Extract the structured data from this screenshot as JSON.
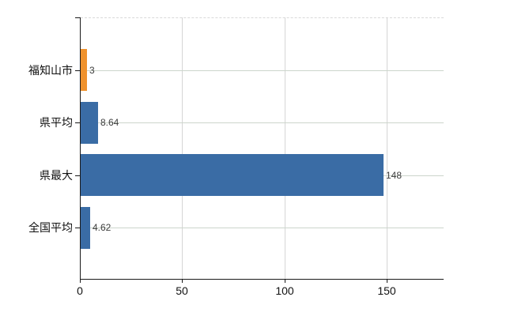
{
  "chart_data": {
    "type": "bar",
    "orientation": "horizontal",
    "title": "",
    "categories": [
      "福知山市",
      "県平均",
      "県最大",
      "全国平均"
    ],
    "values": [
      3,
      8.64,
      148,
      4.62
    ],
    "value_labels": [
      "3",
      "8.64",
      "148",
      "4.62"
    ],
    "bar_colors": [
      "#ef922d",
      "#3a6ca5",
      "#3a6ca5",
      "#3a6ca5"
    ],
    "x_tick_values": [
      0,
      50,
      100,
      150
    ],
    "x_tick_labels": [
      "0",
      "50",
      "100",
      "150"
    ],
    "xlim": [
      0,
      177.5
    ],
    "grid": "on",
    "legend": "none",
    "xlabel": "",
    "ylabel": ""
  },
  "colors": {
    "bar_orange": "#ef922d",
    "bar_blue": "#3a6ca5",
    "axis": "#1a1a1a",
    "grid_vertical": "#d6d6d6",
    "grid_horizontal": "#ccd5cb",
    "plot_top_dashed": "#d9d9d9",
    "value_label_text": "#3d3d3d",
    "tick_text": "#111111",
    "background": "#ffffff"
  }
}
